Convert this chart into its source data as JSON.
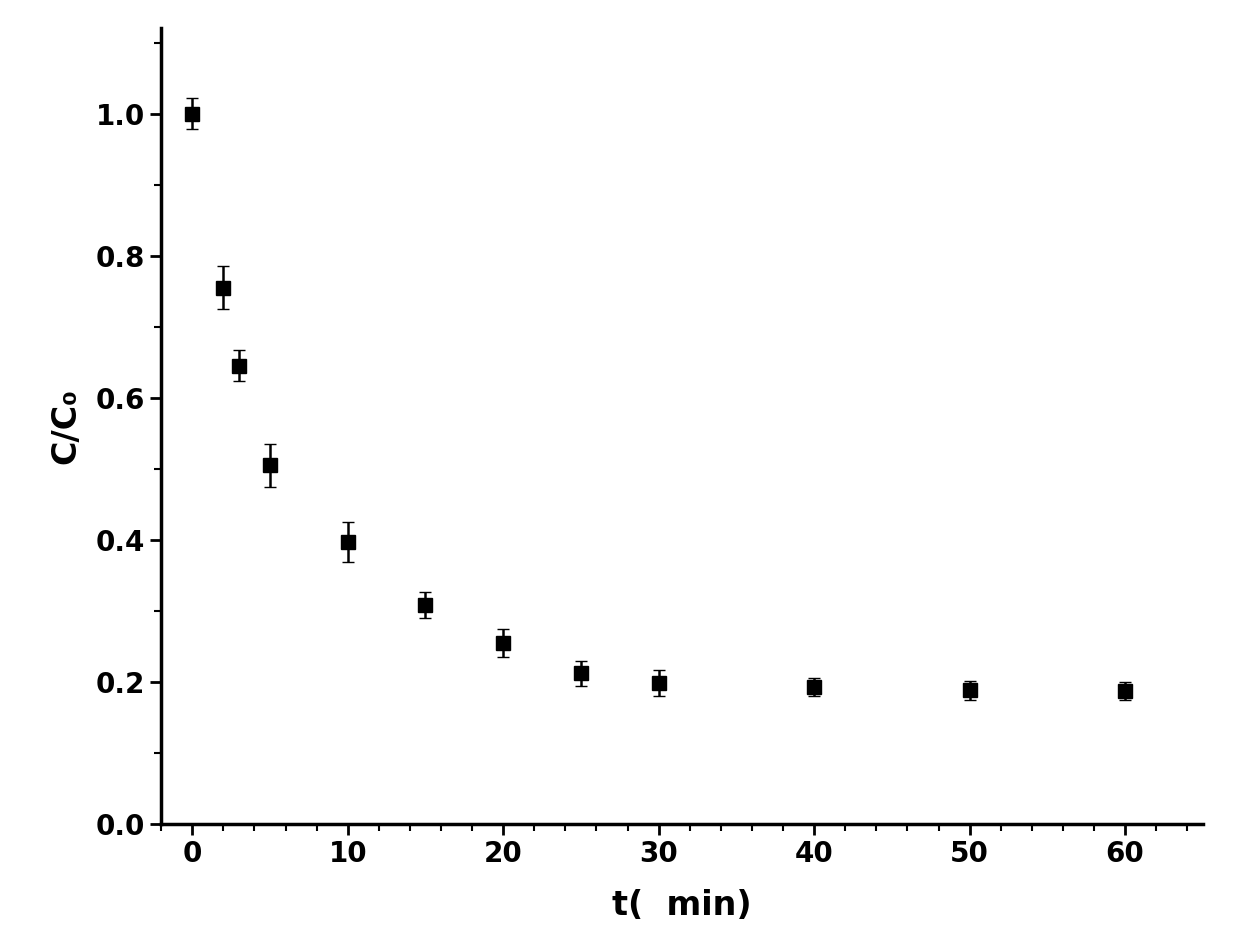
{
  "x": [
    0,
    2,
    3,
    5,
    10,
    15,
    20,
    25,
    30,
    40,
    50,
    60
  ],
  "y": [
    1.0,
    0.755,
    0.645,
    0.505,
    0.397,
    0.308,
    0.255,
    0.212,
    0.198,
    0.193,
    0.188,
    0.187
  ],
  "yerr": [
    0.022,
    0.03,
    0.022,
    0.03,
    0.028,
    0.018,
    0.02,
    0.018,
    0.018,
    0.013,
    0.013,
    0.013
  ],
  "xlabel": "t(  min)",
  "ylabel": "C/C₀",
  "xlim": [
    -2,
    65
  ],
  "ylim": [
    0.0,
    1.12
  ],
  "yticks": [
    0.0,
    0.2,
    0.4,
    0.6,
    0.8,
    1.0
  ],
  "xticks": [
    0,
    10,
    20,
    30,
    40,
    50,
    60
  ],
  "marker": "s",
  "marker_color": "black",
  "marker_size": 10,
  "capsize": 4,
  "elinewidth": 1.8,
  "background_color": "#ffffff",
  "spine_linewidth": 2.5,
  "tick_labelsize": 20,
  "xlabel_fontsize": 24,
  "ylabel_fontsize": 24
}
